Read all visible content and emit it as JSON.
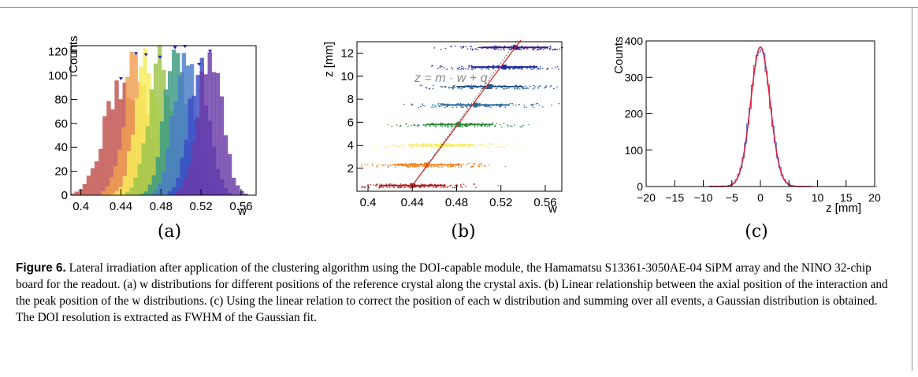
{
  "chart_data": [
    {
      "type": "bar",
      "panel": "a",
      "xlabel": "w",
      "ylabel": "Counts",
      "xlim": [
        0.39,
        0.575
      ],
      "ylim": [
        0,
        125
      ],
      "xticks": [
        "0.4",
        "0.44",
        "0.48",
        "0.52",
        "0.56"
      ],
      "yticks": [
        "0",
        "20",
        "40",
        "60",
        "80",
        "100",
        "120"
      ],
      "series": [
        {
          "color": "#c0504d",
          "mean": 0.44,
          "sigma": 0.017,
          "peak": 92
        },
        {
          "color": "#f0a050",
          "mean": 0.455,
          "sigma": 0.012,
          "peak": 113
        },
        {
          "color": "#f6ee5c",
          "mean": 0.465,
          "sigma": 0.011,
          "peak": 112
        },
        {
          "color": "#9cc44a",
          "mean": 0.479,
          "sigma": 0.012,
          "peak": 110
        },
        {
          "color": "#3c9a82",
          "mean": 0.494,
          "sigma": 0.011,
          "peak": 118
        },
        {
          "color": "#4a7cc8",
          "mean": 0.504,
          "sigma": 0.011,
          "peak": 119
        },
        {
          "color": "#3a4cc4",
          "mean": 0.518,
          "sigma": 0.011,
          "peak": 104
        },
        {
          "color": "#6a3aa8",
          "mean": 0.529,
          "sigma": 0.012,
          "peak": 115
        }
      ]
    },
    {
      "type": "scatter",
      "panel": "b",
      "xlabel": "w",
      "ylabel": "z [mm]",
      "xlim": [
        0.39,
        0.575
      ],
      "ylim": [
        0,
        13
      ],
      "xticks": [
        "0.4",
        "0.44",
        "0.48",
        "0.52",
        "0.56"
      ],
      "yticks": [
        "2",
        "4",
        "6",
        "8",
        "10",
        "12"
      ],
      "annotation": "z = m · w + q",
      "bands": [
        {
          "z": 0.5,
          "peak_w": 0.44,
          "color": "#b02020"
        },
        {
          "z": 2.3,
          "peak_w": 0.453,
          "color": "#f08020"
        },
        {
          "z": 4.0,
          "peak_w": 0.467,
          "color": "#f6ee5c"
        },
        {
          "z": 5.8,
          "peak_w": 0.482,
          "color": "#2a8a3a"
        },
        {
          "z": 7.5,
          "peak_w": 0.497,
          "color": "#2a6a9a"
        },
        {
          "z": 9.1,
          "peak_w": 0.51,
          "color": "#2a5a8a"
        },
        {
          "z": 10.8,
          "peak_w": 0.523,
          "color": "#1a2aa0"
        },
        {
          "z": 12.5,
          "peak_w": 0.533,
          "color": "#3a1a8a"
        }
      ],
      "fit": {
        "color": "#e02020"
      }
    },
    {
      "type": "bar",
      "panel": "c",
      "xlabel": "z [mm]",
      "ylabel": "Counts",
      "xlim": [
        -20,
        20
      ],
      "ylim": [
        0,
        400
      ],
      "xticks": [
        "−20",
        "−15",
        "−10",
        "−5",
        "0",
        "5",
        "10",
        "15",
        "20"
      ],
      "yticks": [
        "0",
        "100",
        "200",
        "300",
        "400"
      ],
      "histogram": {
        "mean": 0.0,
        "sigma": 1.7,
        "peak": 385,
        "bin": 0.4,
        "color": "#4a6ac8"
      },
      "fit": {
        "type": "gaussian",
        "mean": 0.0,
        "sigma": 1.7,
        "peak": 383,
        "color": "#e02040"
      }
    }
  ],
  "labels": {
    "a": "(a)",
    "b": "(b)",
    "c": "(c)"
  },
  "caption": {
    "figure": "Figure 6.",
    "text": "Lateral irradiation after application of the clustering algorithm using the DOI-capable module, the Hamamatsu S13361-3050AE-04 SiPM array and the NINO 32-chip board for the readout. (a) w distributions for different positions of the reference crystal along the crystal axis. (b) Linear relationship between the axial position of the interaction and the peak position of the w distributions. (c) Using the linear relation to correct the position of each w distribution and summing over all events, a Gaussian distribution is obtained. The DOI resolution is extracted as FWHM of the Gaussian fit."
  }
}
